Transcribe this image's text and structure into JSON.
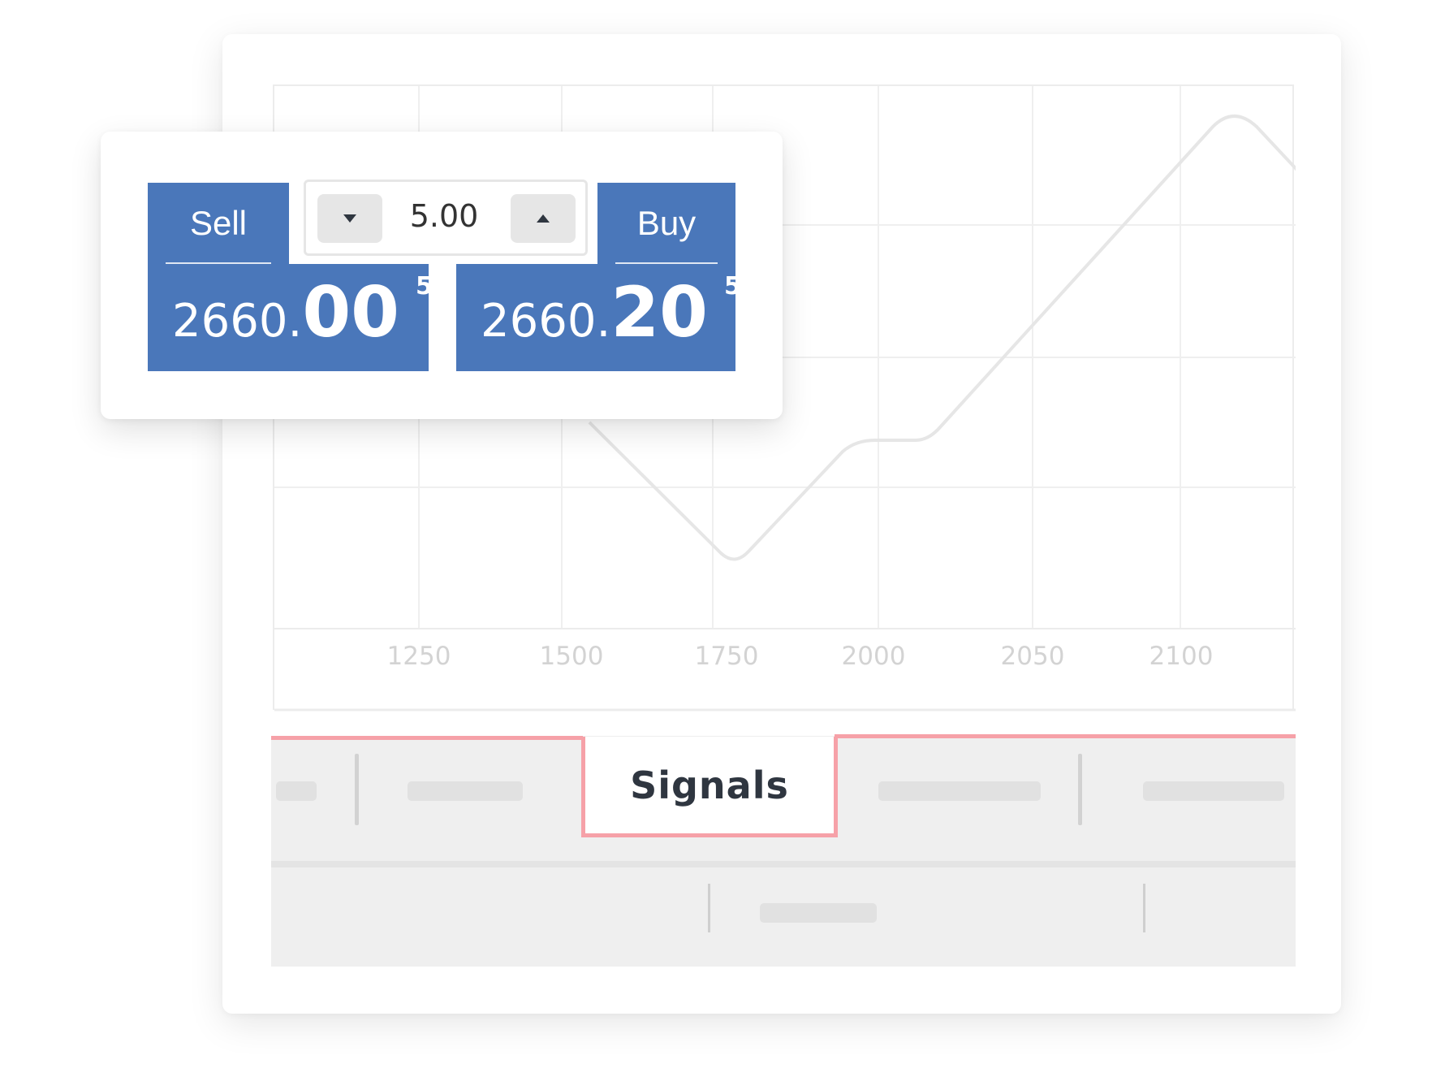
{
  "chart": {
    "x_ticks": [
      "1250",
      "1500",
      "1750",
      "2000",
      "2050",
      "2100"
    ],
    "line_color": "#e6e6e6",
    "grid_color": "#efefef"
  },
  "trade_panel": {
    "sell": {
      "label": "Sell",
      "price_int": "2660.",
      "price_frac": "00",
      "price_pip": "5"
    },
    "buy": {
      "label": "Buy",
      "price_int": "2660.",
      "price_frac": "20",
      "price_pip": "5"
    },
    "quantity": {
      "value": "5.00",
      "decrease_icon": "triangle-down-icon",
      "increase_icon": "triangle-up-icon"
    },
    "accent_color": "#4a77ba"
  },
  "tabs": {
    "active_label": "Signals",
    "active_border_color": "#f6a1a8"
  }
}
